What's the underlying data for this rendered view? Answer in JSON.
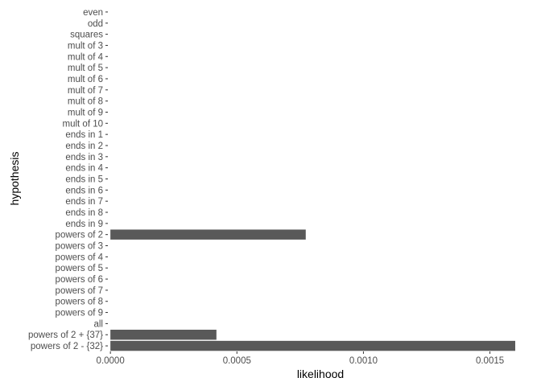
{
  "chart_data": {
    "type": "bar",
    "orientation": "horizontal",
    "xlabel": "likelihood",
    "ylabel": "hypothesis",
    "xlim": [
      -1e-05,
      0.0016
    ],
    "x_ticks": [
      0,
      0.0005,
      0.001,
      0.0015
    ],
    "x_tick_labels": [
      "0.0000",
      "0.0005",
      "0.0010",
      "0.0015"
    ],
    "grid": false,
    "bar_color": "#595959",
    "categories": [
      "even",
      "odd",
      "squares",
      "mult of 3",
      "mult of 4",
      "mult of 5",
      "mult of 6",
      "mult of 7",
      "mult of 8",
      "mult of 9",
      "mult of 10",
      "ends in 1",
      "ends in 2",
      "ends in 3",
      "ends in 4",
      "ends in 5",
      "ends in 6",
      "ends in 7",
      "ends in 8",
      "ends in 9",
      "powers of 2",
      "powers of 3",
      "powers of 4",
      "powers of 5",
      "powers of 6",
      "powers of 7",
      "powers of 8",
      "powers of 9",
      "all",
      "powers of 2 + {37}",
      "powers of 2 - {32}"
    ],
    "values": [
      0,
      0,
      0,
      0,
      0,
      0,
      0,
      0,
      0,
      0,
      0,
      0,
      0,
      0,
      0,
      0,
      0,
      0,
      0,
      0,
      0.000772,
      0,
      0,
      0,
      0,
      0,
      0,
      0,
      0,
      0.000419,
      0.0016
    ]
  }
}
